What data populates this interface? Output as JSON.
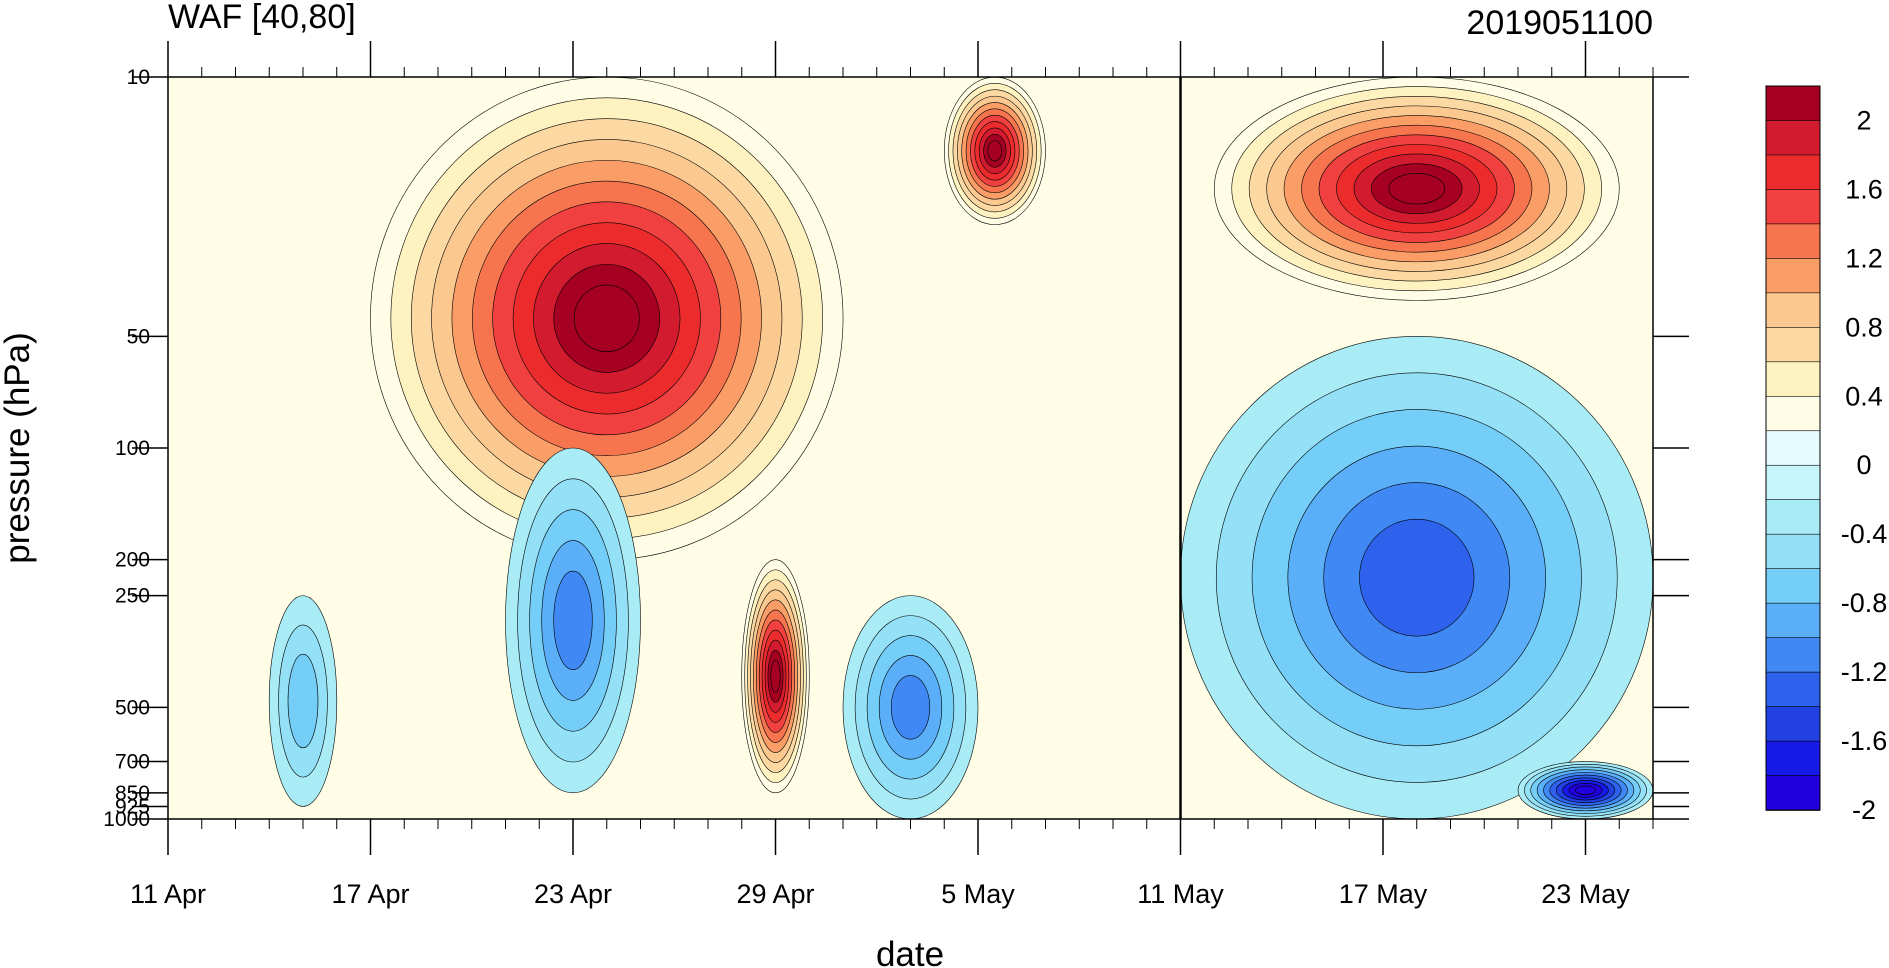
{
  "chart_data": {
    "type": "filled-contour",
    "title_left": "WAF [40,80]",
    "title_right": "2019051100",
    "xlabel": "date",
    "ylabel": "pressure (hPa)",
    "x_tick_labels": [
      "11 Apr",
      "17 Apr",
      "23 Apr",
      "29 Apr",
      "5 May",
      "11 May",
      "17 May",
      "23 May"
    ],
    "x_range": [
      "11 Apr",
      "25 May"
    ],
    "divider_date": "11 May",
    "y_axis": "log pressure, inverted",
    "y_tick_labels": [
      "10",
      "50",
      "100",
      "200",
      "250",
      "500",
      "700",
      "850",
      "925",
      "1000"
    ],
    "y_ticks": [
      10,
      50,
      100,
      200,
      250,
      500,
      700,
      850,
      925,
      1000
    ],
    "colorbar": {
      "labels": [
        "2",
        "1.6",
        "1.2",
        "0.8",
        "0.4",
        "0",
        "-0.4",
        "-0.8",
        "-1.2",
        "-1.6",
        "-2"
      ],
      "levels": [
        2.2,
        2.0,
        1.8,
        1.6,
        1.4,
        1.2,
        1.0,
        0.8,
        0.6,
        0.4,
        0.2,
        0.0,
        -0.2,
        -0.4,
        -0.6,
        -0.8,
        -1.0,
        -1.2,
        -1.4,
        -1.6,
        -1.8,
        -2.0,
        -2.2
      ],
      "colors": [
        "#a50021",
        "#d31b30",
        "#ec2c2c",
        "#f14040",
        "#f7754e",
        "#fa9d66",
        "#fbc890",
        "#fcd9a3",
        "#fdf2c0",
        "#fffde6",
        "#e6fbff",
        "#c6f5fb",
        "#a9ecf6",
        "#94e0f6",
        "#74cef7",
        "#5aaff8",
        "#4088f3",
        "#2f62ec",
        "#2141e2",
        "#1719e6",
        "#2200dd"
      ]
    },
    "regions": [
      {
        "name": "strong positive upper layer, 17 Apr - 1 May",
        "dates": [
          "17 Apr",
          "1 May"
        ],
        "pressure": [
          10,
          200
        ],
        "peak": 2.2
      },
      {
        "name": "positive tongue at 29 Apr",
        "dates": [
          "28 Apr",
          "30 Apr"
        ],
        "pressure": [
          200,
          850
        ],
        "peak": 2.2
      },
      {
        "name": "positive maximum near 5 May",
        "dates": [
          "4 May",
          "7 May"
        ],
        "pressure": [
          10,
          25
        ],
        "peak": 2.2
      },
      {
        "name": "positive upper layer 12-23 May",
        "dates": [
          "12 May",
          "24 May"
        ],
        "pressure": [
          10,
          40
        ],
        "peak": 2.2
      },
      {
        "name": "negative region after 11 May",
        "dates": [
          "11 May",
          "25 May"
        ],
        "pressure": [
          50,
          1000
        ],
        "peak": -1.2
      },
      {
        "name": "strongest negative near surface, late May",
        "dates": [
          "21 May",
          "25 May"
        ],
        "pressure": [
          700,
          1000
        ],
        "peak": -2.0
      },
      {
        "name": "negative cell near 23 Apr",
        "dates": [
          "21 Apr",
          "25 Apr"
        ],
        "pressure": [
          100,
          850
        ],
        "peak": -0.9
      },
      {
        "name": "negative cell near 14 Apr",
        "dates": [
          "14 Apr",
          "16 Apr"
        ],
        "pressure": [
          250,
          925
        ],
        "peak": -0.6
      },
      {
        "name": "negative cell near 2 May",
        "dates": [
          "1 May",
          "5 May"
        ],
        "pressure": [
          250,
          1000
        ],
        "peak": -0.9
      }
    ]
  }
}
